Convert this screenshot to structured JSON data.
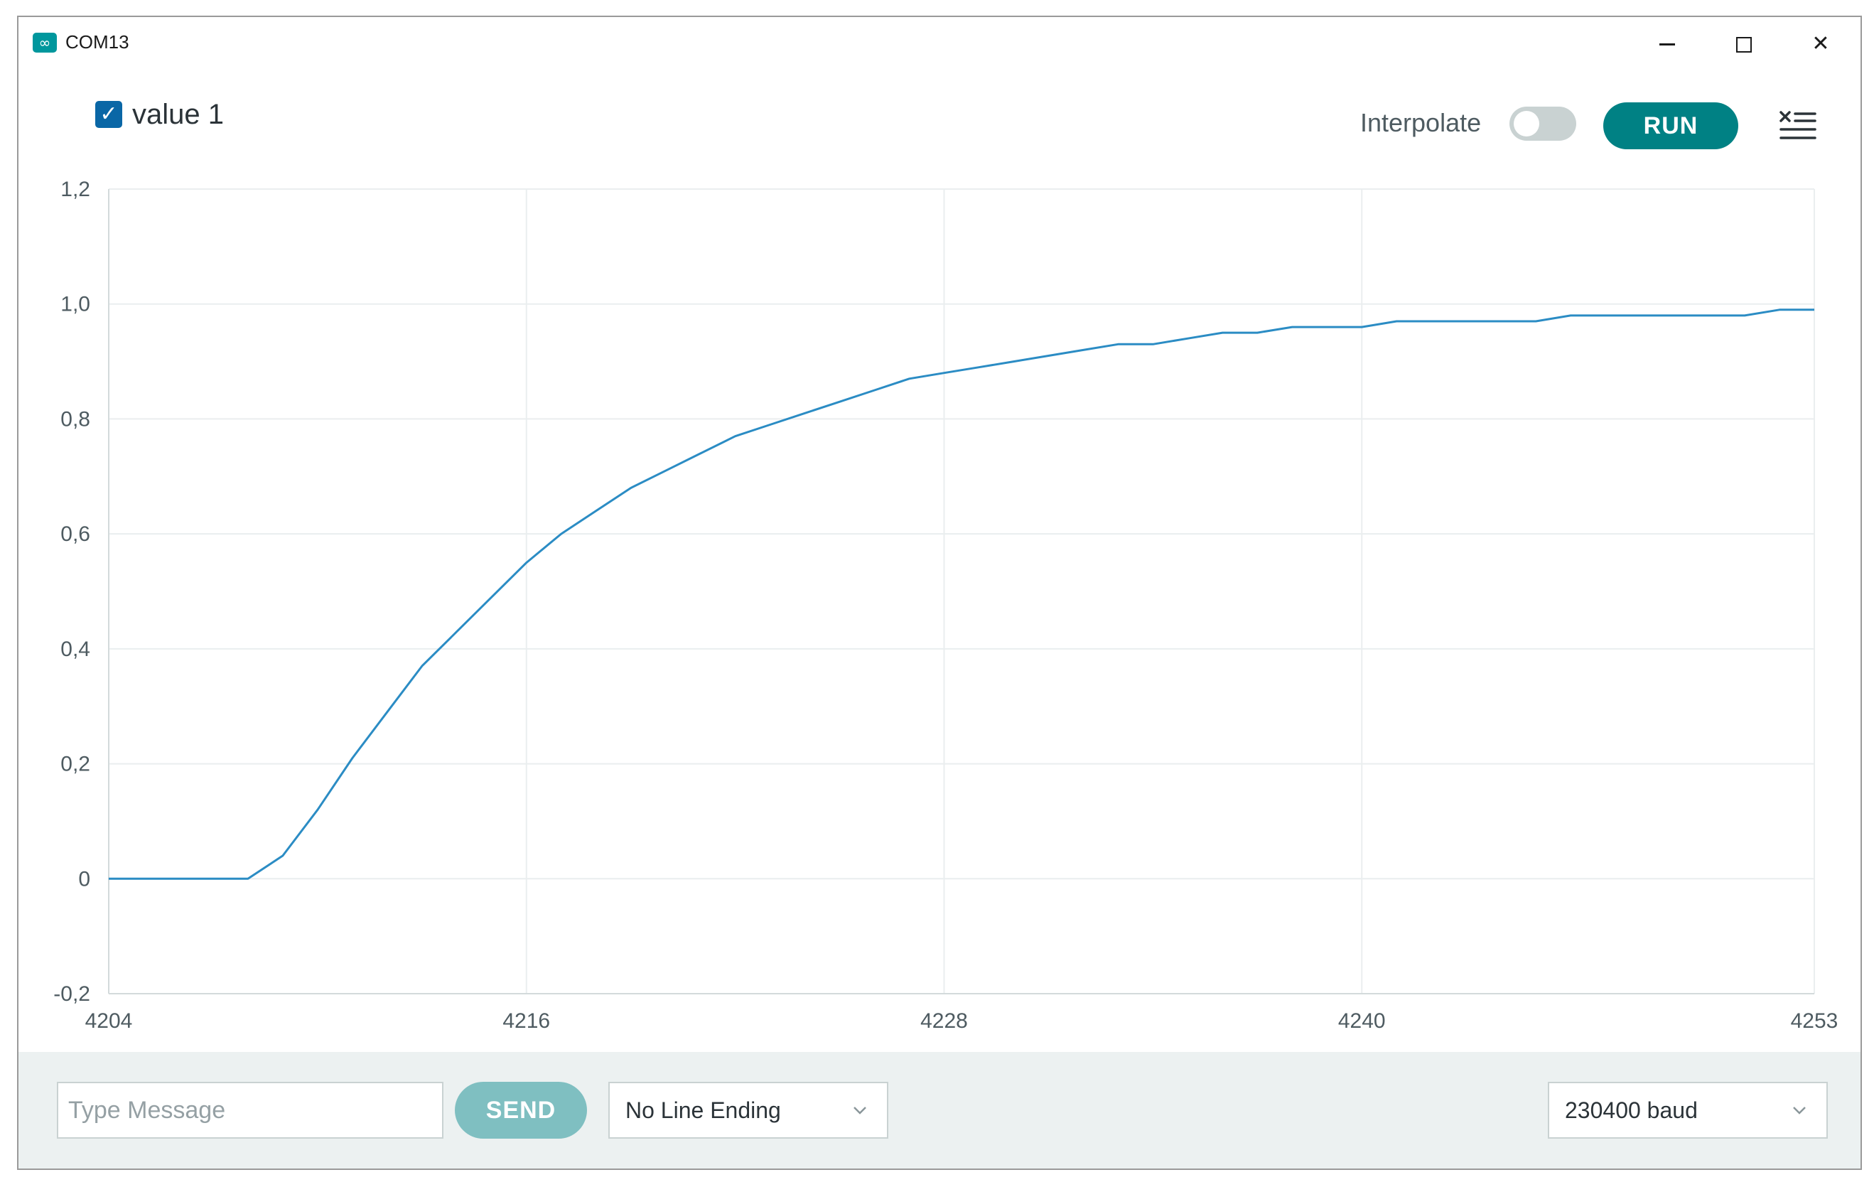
{
  "window": {
    "title": "COM13",
    "icon": "arduino-infinity-icon"
  },
  "toolbar": {
    "legend_label": "value 1",
    "legend_checked": true,
    "interpolate_label": "Interpolate",
    "interpolate_on": false,
    "run_label": "RUN",
    "clear_icon": "clear-list-icon"
  },
  "chart_data": {
    "type": "line",
    "title": "",
    "xlabel": "",
    "ylabel": "",
    "xlim": [
      4204,
      4253
    ],
    "ylim": [
      -0.2,
      1.2
    ],
    "x_ticks": [
      "4204",
      "4216",
      "4228",
      "4240",
      "4253"
    ],
    "x_tick_values": [
      4204,
      4216,
      4228,
      4240,
      4253
    ],
    "y_ticks": [
      "1,2",
      "1,0",
      "0,8",
      "0,6",
      "0,4",
      "0,2",
      "0",
      "-0,2"
    ],
    "y_tick_values": [
      1.2,
      1.0,
      0.8,
      0.6,
      0.4,
      0.2,
      0,
      -0.2
    ],
    "grid": true,
    "legend": "top-left",
    "series": [
      {
        "name": "value 1",
        "color": "#2b8cc4",
        "x": [
          4204,
          4205,
          4206,
          4207,
          4208,
          4209,
          4210,
          4211,
          4212,
          4213,
          4214,
          4215,
          4216,
          4217,
          4218,
          4219,
          4220,
          4221,
          4222,
          4223,
          4224,
          4225,
          4226,
          4227,
          4228,
          4229,
          4230,
          4231,
          4232,
          4233,
          4234,
          4235,
          4236,
          4237,
          4238,
          4239,
          4240,
          4241,
          4242,
          4243,
          4244,
          4245,
          4246,
          4247,
          4248,
          4249,
          4250,
          4251,
          4252,
          4253
        ],
        "y": [
          0,
          0,
          0,
          0,
          0,
          0.04,
          0.12,
          0.21,
          0.29,
          0.37,
          0.43,
          0.49,
          0.55,
          0.6,
          0.64,
          0.68,
          0.71,
          0.74,
          0.77,
          0.79,
          0.81,
          0.83,
          0.85,
          0.87,
          0.88,
          0.89,
          0.9,
          0.91,
          0.92,
          0.93,
          0.93,
          0.94,
          0.95,
          0.95,
          0.96,
          0.96,
          0.96,
          0.97,
          0.97,
          0.97,
          0.97,
          0.97,
          0.98,
          0.98,
          0.98,
          0.98,
          0.98,
          0.98,
          0.99,
          0.99
        ]
      }
    ]
  },
  "bottom": {
    "message_placeholder": "Type Message",
    "send_label": "SEND",
    "line_ending": "No Line Ending",
    "baud": "230400 baud"
  }
}
